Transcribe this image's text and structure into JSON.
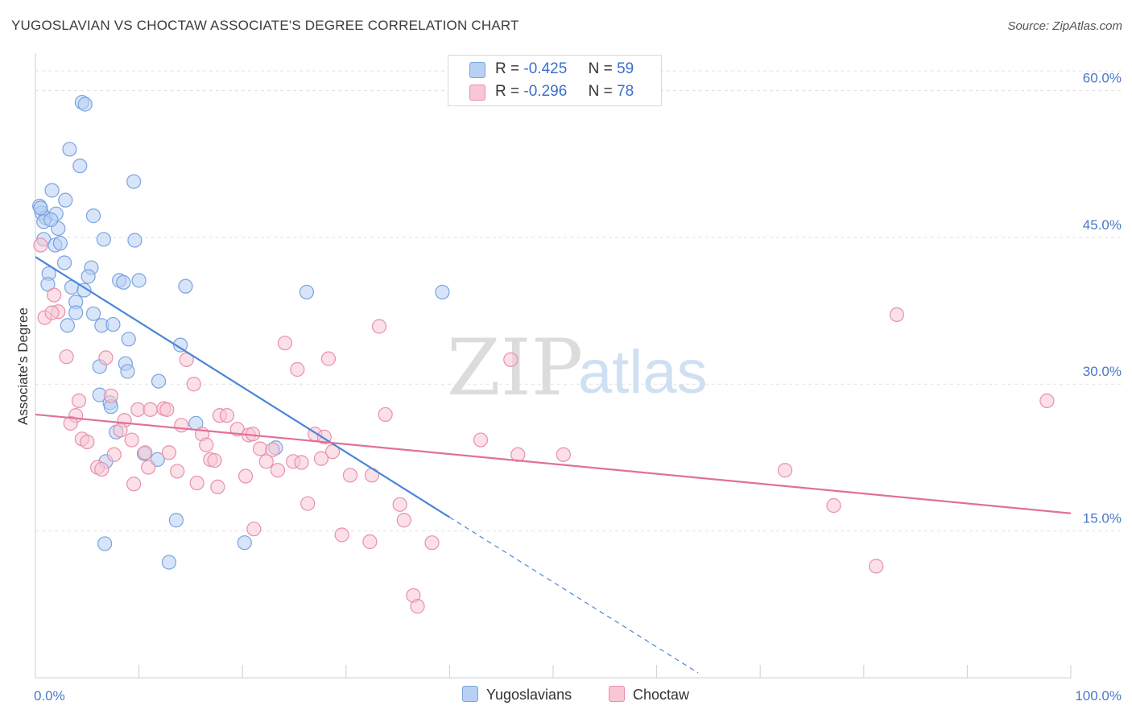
{
  "title": "YUGOSLAVIAN VS CHOCTAW ASSOCIATE'S DEGREE CORRELATION CHART",
  "source": "Source: ZipAtlas.com",
  "watermark": {
    "zip": "ZIP",
    "atlas": "atlas"
  },
  "legend": {
    "r_label": "R =",
    "n_label": "N =",
    "rows": [
      {
        "r": "-0.425",
        "n": "59",
        "fill": "#b8d0f4",
        "stroke": "#7aa3e0"
      },
      {
        "r": "-0.296",
        "n": "78",
        "fill": "#f8c6d4",
        "stroke": "#e890ab"
      }
    ]
  },
  "chart_data": {
    "type": "scatter",
    "xlabel": "",
    "ylabel": "Associate's Degree",
    "xlim": [
      0,
      100
    ],
    "ylim": [
      0,
      63
    ],
    "x_tick_labels": [
      "0.0%",
      "100.0%"
    ],
    "y_ticks": [
      15,
      30,
      45,
      60
    ],
    "y_tick_labels": [
      "15.0%",
      "30.0%",
      "45.0%",
      "60.0%"
    ],
    "grid": true,
    "legend_position": "bottom",
    "series": [
      {
        "name": "Yugoslavians",
        "color": "#4a86d8",
        "fill": "#b8d0f4",
        "trend": {
          "x0": 0,
          "y0": 43.0,
          "x1": 40,
          "y1": 16.4,
          "dash_to_x": 64,
          "dash_to_y": 0.5
        },
        "points": [
          [
            4.5,
            58.8
          ],
          [
            4.8,
            58.6
          ],
          [
            3.3,
            54.0
          ],
          [
            4.3,
            52.3
          ],
          [
            9.5,
            50.7
          ],
          [
            1.6,
            49.8
          ],
          [
            2.9,
            48.8
          ],
          [
            0.4,
            48.2
          ],
          [
            0.6,
            47.5
          ],
          [
            1.0,
            47.0
          ],
          [
            2.0,
            47.4
          ],
          [
            5.6,
            47.2
          ],
          [
            0.8,
            46.6
          ],
          [
            2.2,
            45.9
          ],
          [
            0.8,
            44.8
          ],
          [
            6.6,
            44.8
          ],
          [
            9.6,
            44.7
          ],
          [
            1.9,
            44.2
          ],
          [
            2.4,
            44.4
          ],
          [
            2.8,
            42.4
          ],
          [
            5.4,
            41.9
          ],
          [
            1.3,
            41.3
          ],
          [
            5.1,
            41.0
          ],
          [
            8.1,
            40.6
          ],
          [
            8.5,
            40.4
          ],
          [
            10.0,
            40.6
          ],
          [
            1.2,
            40.2
          ],
          [
            14.5,
            40.0
          ],
          [
            3.5,
            39.9
          ],
          [
            4.7,
            39.6
          ],
          [
            26.2,
            39.4
          ],
          [
            39.3,
            39.4
          ],
          [
            3.9,
            38.4
          ],
          [
            3.9,
            37.3
          ],
          [
            5.6,
            37.2
          ],
          [
            3.1,
            36.0
          ],
          [
            6.4,
            36.0
          ],
          [
            7.5,
            36.1
          ],
          [
            9.0,
            34.6
          ],
          [
            14.0,
            34.0
          ],
          [
            8.7,
            32.1
          ],
          [
            6.2,
            31.8
          ],
          [
            8.9,
            31.3
          ],
          [
            11.9,
            30.3
          ],
          [
            6.2,
            28.9
          ],
          [
            7.2,
            28.1
          ],
          [
            7.3,
            27.7
          ],
          [
            15.5,
            26.0
          ],
          [
            7.8,
            25.1
          ],
          [
            23.2,
            23.5
          ],
          [
            10.5,
            22.9
          ],
          [
            11.8,
            22.3
          ],
          [
            6.8,
            22.1
          ],
          [
            13.6,
            16.1
          ],
          [
            6.7,
            13.7
          ],
          [
            20.2,
            13.8
          ],
          [
            12.9,
            11.8
          ],
          [
            0.5,
            48.0
          ],
          [
            1.5,
            46.8
          ]
        ]
      },
      {
        "name": "Choctaw",
        "color": "#e0709a",
        "fill": "#f8c6d4",
        "trend": {
          "x0": 0,
          "y0": 26.9,
          "x1": 100,
          "y1": 16.8
        },
        "points": [
          [
            0.5,
            44.2
          ],
          [
            1.8,
            39.1
          ],
          [
            2.2,
            37.4
          ],
          [
            0.9,
            36.8
          ],
          [
            1.6,
            37.3
          ],
          [
            33.2,
            35.9
          ],
          [
            83.2,
            37.1
          ],
          [
            24.1,
            34.2
          ],
          [
            3.0,
            32.8
          ],
          [
            6.8,
            32.7
          ],
          [
            14.6,
            32.5
          ],
          [
            28.3,
            32.6
          ],
          [
            45.9,
            32.5
          ],
          [
            25.3,
            31.5
          ],
          [
            15.3,
            30.0
          ],
          [
            4.2,
            28.3
          ],
          [
            7.3,
            28.8
          ],
          [
            97.7,
            28.3
          ],
          [
            9.9,
            27.4
          ],
          [
            11.1,
            27.4
          ],
          [
            12.4,
            27.5
          ],
          [
            12.7,
            27.4
          ],
          [
            3.9,
            26.8
          ],
          [
            17.8,
            26.8
          ],
          [
            18.5,
            26.8
          ],
          [
            33.8,
            26.9
          ],
          [
            3.4,
            26.0
          ],
          [
            8.6,
            26.3
          ],
          [
            14.1,
            25.8
          ],
          [
            19.5,
            25.4
          ],
          [
            8.2,
            25.3
          ],
          [
            16.1,
            24.9
          ],
          [
            20.6,
            24.8
          ],
          [
            21.0,
            24.9
          ],
          [
            27.0,
            24.9
          ],
          [
            27.9,
            24.6
          ],
          [
            4.5,
            24.4
          ],
          [
            5.0,
            24.1
          ],
          [
            9.3,
            24.3
          ],
          [
            43.0,
            24.3
          ],
          [
            16.5,
            23.8
          ],
          [
            21.7,
            23.4
          ],
          [
            22.9,
            23.3
          ],
          [
            28.7,
            23.1
          ],
          [
            10.6,
            23.0
          ],
          [
            12.9,
            23.0
          ],
          [
            7.6,
            22.8
          ],
          [
            46.6,
            22.8
          ],
          [
            51.0,
            22.8
          ],
          [
            16.9,
            22.3
          ],
          [
            17.3,
            22.2
          ],
          [
            22.3,
            22.1
          ],
          [
            24.9,
            22.1
          ],
          [
            25.7,
            22.0
          ],
          [
            27.6,
            22.4
          ],
          [
            10.9,
            21.5
          ],
          [
            6.0,
            21.5
          ],
          [
            6.4,
            21.3
          ],
          [
            13.7,
            21.1
          ],
          [
            23.4,
            21.2
          ],
          [
            20.3,
            20.6
          ],
          [
            30.4,
            20.7
          ],
          [
            32.5,
            20.7
          ],
          [
            72.4,
            21.2
          ],
          [
            9.5,
            19.8
          ],
          [
            15.6,
            19.9
          ],
          [
            17.6,
            19.5
          ],
          [
            26.3,
            17.8
          ],
          [
            35.2,
            17.7
          ],
          [
            77.1,
            17.6
          ],
          [
            35.6,
            16.1
          ],
          [
            21.1,
            15.2
          ],
          [
            29.6,
            14.6
          ],
          [
            32.3,
            13.9
          ],
          [
            38.3,
            13.8
          ],
          [
            81.2,
            11.4
          ],
          [
            36.5,
            8.4
          ],
          [
            36.9,
            7.3
          ]
        ]
      }
    ]
  }
}
